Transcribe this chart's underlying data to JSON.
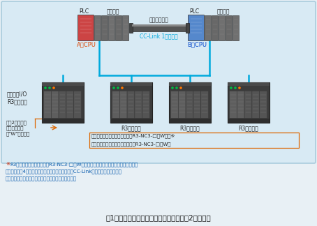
{
  "bg_color": "#e8f0f5",
  "diagram_bg": "#d8eaf4",
  "diagram_border": "#aaccdd",
  "title": "図1　通信ラインはシングルラインとした2重化構築",
  "plc_a_label": "A系CPU",
  "plc_b_label": "B系CPU",
  "plc_label": "PLC",
  "master_label": "マスタ局",
  "sync_label": "同期ケーブル",
  "cclink_label": "CC-Link 1系ライン",
  "remote_label": "リモートI/O\nR3シリーズ",
  "r3_label": "R3シリーズ",
  "card_sub": "通信カード（サブ設定、形式：R3-NC3-□／W）　※",
  "card_main": "通信カード（メイン設定、形式：R3-NC3-□／W）",
  "card_w": "通信2重化対応\n入出力カード\n（\"W\"タイプ）",
  "note1": "※R3シリーズの通信カード（R3-NC3-□／W）の局種別はリモートデバイス局であり、",
  "note2": "　占有局数は4局です。（リモートデバイス局とはCC-Linkの子局の一種であり、",
  "note3": "　ビット単位の情報とワード単位の情報を扱います）",
  "col_blue": "#00aadd",
  "col_orange": "#dd6600",
  "col_red": "#cc2200",
  "col_note_blue": "#0055aa",
  "col_plc_a": "#cc4444",
  "col_plc_b": "#5588cc",
  "col_gray_dark": "#3a3a3a",
  "col_gray_mid": "#686868",
  "col_gray_light": "#909090",
  "col_module": "#585858"
}
